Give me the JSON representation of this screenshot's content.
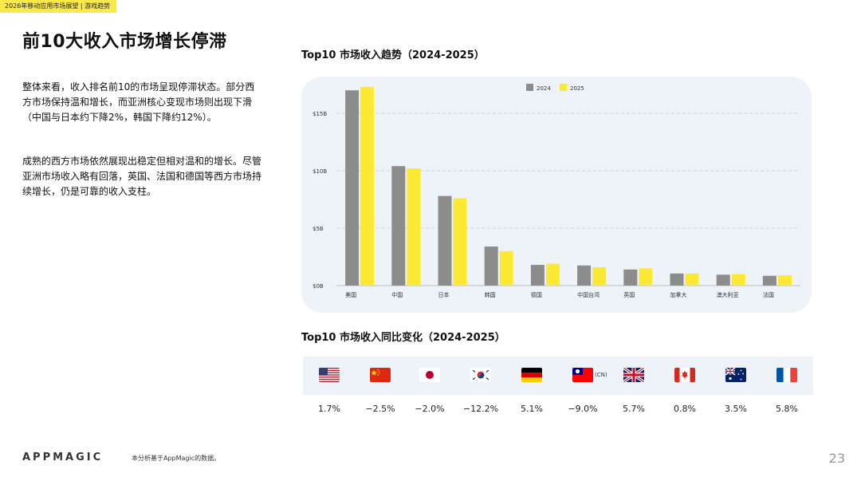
{
  "header": {
    "tag": "2026年移动应用市场展望 | 游戏趋势",
    "title": "前10大收入市场增长停滞"
  },
  "body": {
    "paragraph1": "整体来看，收入排名前10的市场呈现停滞状态。部分西方市场保持温和增长，而亚洲核心变现市场则出现下滑（中国与日本约下降2%，韩国下降约12%）。",
    "paragraph2": "成熟的西方市场依然展现出稳定但相对温和的增长。尽管亚洲市场收入略有回落，英国、法国和德国等西方市场持续增长，仍是可靠的收入支柱。"
  },
  "chart_data": [
    {
      "type": "bar",
      "title": "Top10 市场收入趋势（2024-2025）",
      "categories": [
        "美国",
        "中国",
        "日本",
        "韩国",
        "德国",
        "中国台湾",
        "英国",
        "加拿大",
        "澳大利亚",
        "法国"
      ],
      "series": [
        {
          "name": "2024",
          "values": [
            17.0,
            10.4,
            7.8,
            3.4,
            1.8,
            1.75,
            1.4,
            1.05,
            0.95,
            0.85
          ]
        },
        {
          "name": "2025",
          "values": [
            17.3,
            10.2,
            7.6,
            3.0,
            1.9,
            1.6,
            1.5,
            1.05,
            1.0,
            0.9
          ]
        }
      ],
      "unit": "B USD",
      "yticks": [
        "$0B",
        "$5B",
        "$10B",
        "$15B"
      ],
      "ytick_values": [
        0,
        5,
        10,
        15
      ],
      "ylim": [
        0,
        17.5
      ],
      "colors": {
        "2024": "#8c8c8c",
        "2025": "#fce933"
      },
      "legend": "top-center",
      "grid": "dashed-horizontal"
    },
    {
      "type": "table",
      "title": "Top10 市场收入同比变化（2024-2025）",
      "rows": [
        {
          "market": "us",
          "flag": "us-flag-icon",
          "change": "1.7%"
        },
        {
          "market": "cn",
          "flag": "cn-flag-icon",
          "change": "−2.5%"
        },
        {
          "market": "jp",
          "flag": "jp-flag-icon",
          "change": "−2.0%"
        },
        {
          "market": "kr",
          "flag": "kr-flag-icon",
          "change": "−12.2%"
        },
        {
          "market": "de",
          "flag": "de-flag-icon",
          "change": "5.1%"
        },
        {
          "market": "tw",
          "flag": "tw-flag-icon",
          "note": "(CN)",
          "change": "−9.0%"
        },
        {
          "market": "gb",
          "flag": "gb-flag-icon",
          "change": "5.7%"
        },
        {
          "market": "ca",
          "flag": "ca-flag-icon",
          "change": "0.8%"
        },
        {
          "market": "au",
          "flag": "au-flag-icon",
          "change": "3.5%"
        },
        {
          "market": "fr",
          "flag": "fr-flag-icon",
          "change": "5.8%"
        }
      ]
    }
  ],
  "footer": {
    "logo": "APPMAGIC",
    "note": "本分析基于AppMagic的数据。",
    "page_number": "23"
  }
}
